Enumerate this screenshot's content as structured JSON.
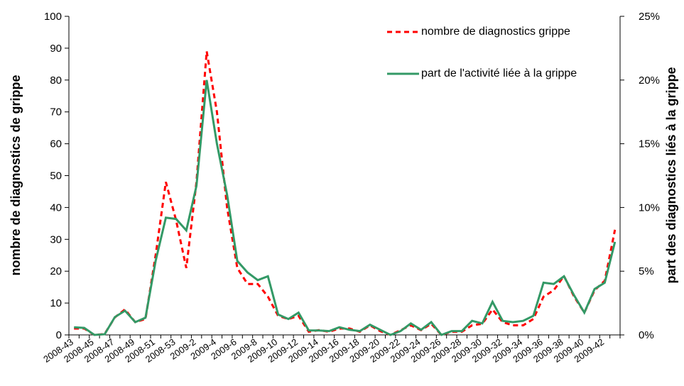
{
  "chart_data": {
    "type": "line",
    "y_label": "nombre de diagnostics de grippe",
    "y2_label": "part des diagnostics liés à la grippe",
    "categories": [
      "2008-43",
      null,
      "2008-45",
      null,
      "2008-47",
      null,
      "2008-49",
      null,
      "2008-51",
      null,
      "2008-53",
      null,
      "2009-2",
      null,
      "2009-4",
      null,
      "2009-6",
      null,
      "2009-8",
      null,
      "2009-10",
      null,
      "2009-12",
      null,
      "2009-14",
      null,
      "2009-16",
      null,
      "2009-18",
      null,
      "2009-20",
      null,
      "2009-22",
      null,
      "2009-24",
      null,
      "2009-26",
      null,
      "2009-28",
      null,
      "2009-30",
      null,
      "2009-32",
      null,
      "2009-34",
      null,
      "2009-36",
      null,
      "2009-38",
      null,
      "2009-40",
      null,
      "2009-42",
      null
    ],
    "series": [
      {
        "name": "nombre de diagnostics grippe",
        "color": "#ff0000",
        "dashed": true,
        "values": [
          2,
          2,
          0,
          0.3,
          5.5,
          8,
          4,
          5,
          25,
          48,
          36,
          21,
          48,
          89,
          70,
          40,
          21,
          16,
          16,
          12,
          6,
          5,
          6,
          1,
          1.5,
          1,
          2,
          2,
          1,
          3,
          1.2,
          0,
          1.5,
          3,
          1.5,
          3.5,
          0,
          1,
          1,
          3,
          3.5,
          8,
          4,
          3,
          3,
          5,
          12,
          14,
          18.5,
          12,
          7,
          14,
          17,
          33
        ]
      },
      {
        "name": "part de l'activité liée à la grippe",
        "color": "#339966",
        "axis": "y2",
        "values": [
          0.6,
          0.55,
          0,
          0.05,
          1.4,
          1.9,
          1.0,
          1.35,
          5.8,
          9.2,
          9.1,
          8.2,
          11.7,
          20,
          15,
          11,
          5.8,
          4.9,
          4.3,
          4.6,
          1.6,
          1.25,
          1.75,
          0.35,
          0.35,
          0.3,
          0.6,
          0.4,
          0.3,
          0.8,
          0.4,
          0,
          0.3,
          0.9,
          0.4,
          1.0,
          0,
          0.3,
          0.3,
          1.1,
          0.9,
          2.6,
          1.1,
          1.0,
          1.1,
          1.5,
          4.1,
          4.0,
          4.6,
          3.1,
          1.75,
          3.6,
          4.1,
          7.3
        ]
      }
    ],
    "ylim": [
      0,
      100
    ],
    "yticks": [
      0,
      10,
      20,
      30,
      40,
      50,
      60,
      70,
      80,
      90,
      100
    ],
    "y2lim": [
      0,
      25
    ],
    "y2ticks": [
      {
        "value": 0,
        "label": "0%"
      },
      {
        "value": 5,
        "label": "5%"
      },
      {
        "value": 10,
        "label": "10%"
      },
      {
        "value": 15,
        "label": "15%"
      },
      {
        "value": 20,
        "label": "20%"
      },
      {
        "value": 25,
        "label": "25%"
      }
    ],
    "legend": "top-right",
    "grid": false
  }
}
